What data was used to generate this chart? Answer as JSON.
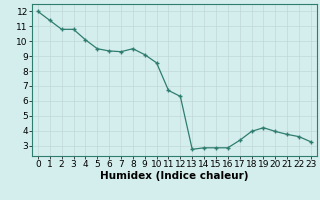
{
  "x": [
    0,
    1,
    2,
    3,
    4,
    5,
    6,
    7,
    8,
    9,
    10,
    11,
    12,
    13,
    14,
    15,
    16,
    17,
    18,
    19,
    20,
    21,
    22,
    23
  ],
  "y": [
    12.0,
    11.4,
    10.8,
    10.8,
    10.1,
    9.5,
    9.35,
    9.3,
    9.5,
    9.1,
    8.55,
    6.7,
    6.3,
    2.75,
    2.85,
    2.85,
    2.85,
    3.35,
    3.95,
    4.2,
    3.95,
    3.75,
    3.6,
    3.25
  ],
  "xlabel": "Humidex (Indice chaleur)",
  "xlim": [
    -0.5,
    23.5
  ],
  "ylim": [
    2.3,
    12.5
  ],
  "yticks": [
    3,
    4,
    5,
    6,
    7,
    8,
    9,
    10,
    11,
    12
  ],
  "xticks": [
    0,
    1,
    2,
    3,
    4,
    5,
    6,
    7,
    8,
    9,
    10,
    11,
    12,
    13,
    14,
    15,
    16,
    17,
    18,
    19,
    20,
    21,
    22,
    23
  ],
  "line_color": "#2e7d6e",
  "marker_color": "#2e7d6e",
  "bg_color": "#d4eeee",
  "grid_color": "#c0d8d8",
  "tick_label_fontsize": 6.5,
  "xlabel_fontsize": 7.5
}
